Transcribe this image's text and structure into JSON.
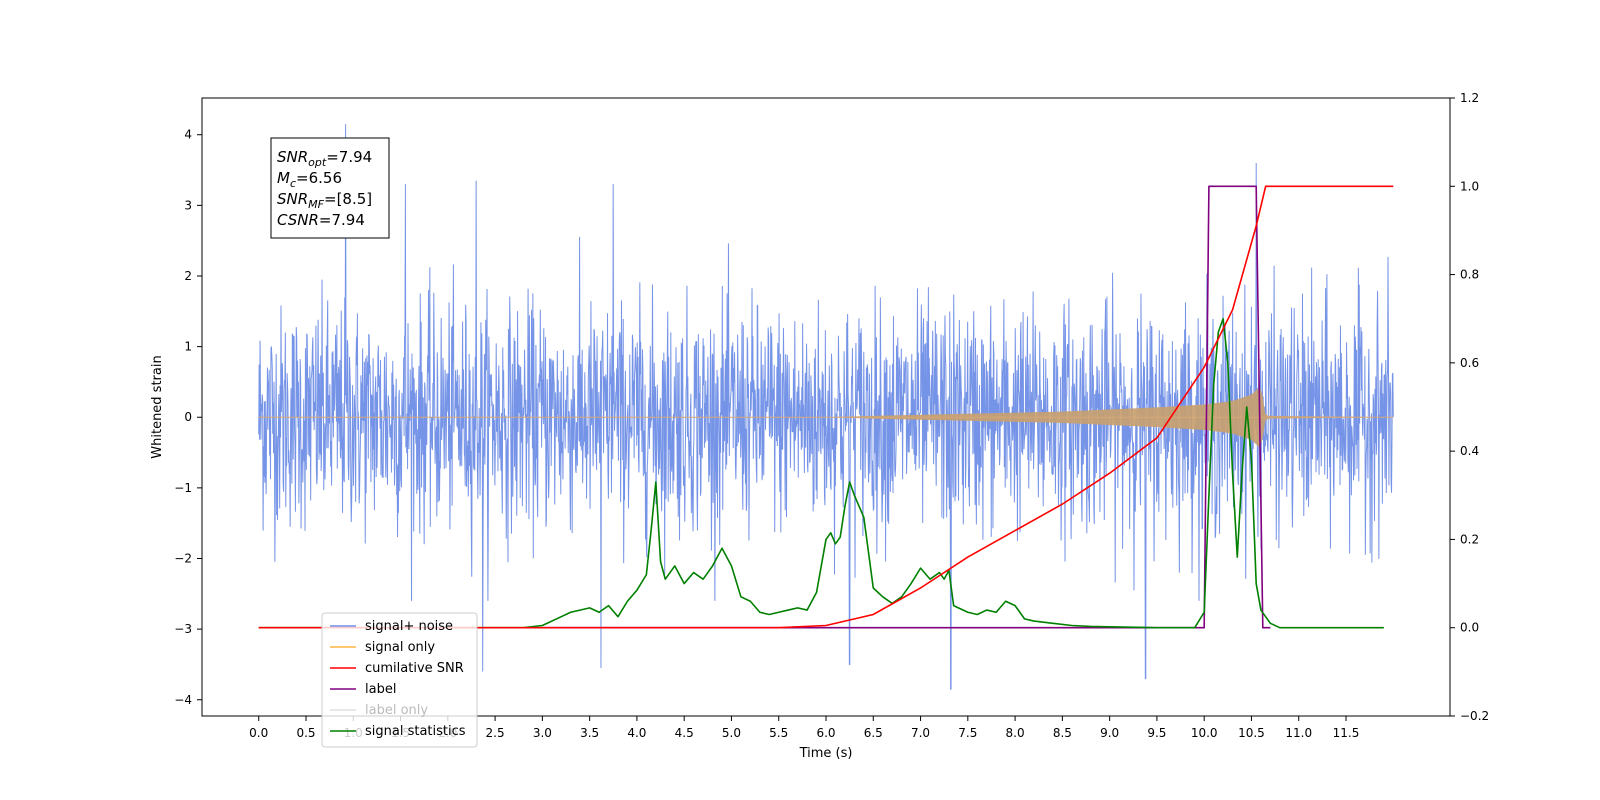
{
  "chart_data": {
    "type": "line",
    "xlabel": "Time (s)",
    "ylabel": "Whitened strain",
    "xlim": [
      -0.6,
      12.6
    ],
    "ylim": [
      -4.23,
      4.52
    ],
    "y2lim": [
      -0.2,
      1.2
    ],
    "x_ticks": [
      0.0,
      0.5,
      1.0,
      1.5,
      2.0,
      2.5,
      3.0,
      3.5,
      4.0,
      4.5,
      5.0,
      5.5,
      6.0,
      6.5,
      7.0,
      7.5,
      8.0,
      8.5,
      9.0,
      9.5,
      10.0,
      10.5,
      11.0,
      11.5
    ],
    "x_tick_labels": [
      "0.0",
      "0.5",
      "1.0",
      "1.5",
      "2.0",
      "2.5",
      "3.0",
      "3.5",
      "4.0",
      "4.5",
      "5.0",
      "5.5",
      "6.0",
      "6.5",
      "7.0",
      "7.5",
      "8.0",
      "8.5",
      "9.0",
      "9.5",
      "10.0",
      "10.5",
      "11.0",
      "11.5"
    ],
    "y_ticks": [
      -4,
      -3,
      -2,
      -1,
      0,
      1,
      2,
      3,
      4
    ],
    "y_tick_labels": [
      "−4",
      "−3",
      "−2",
      "−1",
      "0",
      "1",
      "2",
      "3",
      "4"
    ],
    "y2_ticks": [
      -0.2,
      0.0,
      0.2,
      0.4,
      0.6,
      0.8,
      1.0,
      1.2
    ],
    "y2_tick_labels": [
      "−0.2",
      "0.0",
      "0.2",
      "0.4",
      "0.6",
      "0.8",
      "1.0",
      "1.2"
    ],
    "info_box": [
      {
        "name": "SNR",
        "sub": "opt",
        "value": "=7.94"
      },
      {
        "name": "M",
        "sub": "c",
        "value": "=6.56"
      },
      {
        "name": "SNR",
        "sub": "MF",
        "value": "=[8.5]"
      },
      {
        "name": "CSNR",
        "sub": "",
        "value": "=7.94"
      }
    ],
    "legend_position": "lower-left",
    "series": [
      {
        "name": "signal+ noise",
        "axis": "left",
        "color": "#6f8ee6",
        "noise": {
          "x_start": 0.0,
          "x_end": 12.0,
          "typical_amplitude": [
            -2.0,
            2.0
          ],
          "max": 4.15,
          "min": -3.85
        }
      },
      {
        "name": "signal only",
        "axis": "left",
        "color": "#ffb347",
        "envelope": {
          "x": [
            0.0,
            6.0,
            6.5,
            7.5,
            8.5,
            9.0,
            9.5,
            10.0,
            10.3,
            10.5,
            10.6,
            10.65,
            12.0
          ],
          "amp": [
            0.0,
            0.0,
            0.02,
            0.05,
            0.08,
            0.11,
            0.14,
            0.18,
            0.23,
            0.32,
            0.45,
            0.02,
            0.0
          ]
        }
      },
      {
        "name": "cumilative SNR",
        "axis": "right",
        "color": "#ff0000",
        "x": [
          0.0,
          5.5,
          6.0,
          6.5,
          7.0,
          7.5,
          8.0,
          8.5,
          9.0,
          9.5,
          10.0,
          10.3,
          10.55,
          10.65,
          12.0
        ],
        "values": [
          0.0,
          0.0,
          0.005,
          0.03,
          0.09,
          0.16,
          0.22,
          0.28,
          0.35,
          0.43,
          0.59,
          0.72,
          0.91,
          1.0,
          1.0
        ]
      },
      {
        "name": "label",
        "axis": "right",
        "color": "#800080",
        "x": [
          3.0,
          10.0,
          10.05,
          10.55,
          10.62,
          10.7
        ],
        "values": [
          0.0,
          0.0,
          1.0,
          1.0,
          0.0,
          0.0
        ]
      },
      {
        "name": "label only",
        "axis": "right",
        "color": "#e0e0e0",
        "x": [],
        "values": []
      },
      {
        "name": "signal statistics",
        "axis": "right",
        "color": "#008000",
        "x": [
          0.0,
          2.8,
          3.0,
          3.2,
          3.3,
          3.5,
          3.6,
          3.7,
          3.8,
          3.9,
          4.0,
          4.1,
          4.15,
          4.2,
          4.25,
          4.3,
          4.4,
          4.5,
          4.6,
          4.7,
          4.8,
          4.9,
          5.0,
          5.1,
          5.2,
          5.3,
          5.4,
          5.5,
          5.6,
          5.7,
          5.8,
          5.9,
          6.0,
          6.05,
          6.1,
          6.15,
          6.2,
          6.25,
          6.3,
          6.4,
          6.5,
          6.6,
          6.7,
          6.8,
          6.9,
          7.0,
          7.1,
          7.2,
          7.25,
          7.3,
          7.35,
          7.4,
          7.5,
          7.6,
          7.7,
          7.8,
          7.9,
          8.0,
          8.1,
          8.2,
          8.4,
          8.6,
          8.8,
          9.0,
          9.5,
          9.9,
          10.0,
          10.05,
          10.1,
          10.15,
          10.2,
          10.25,
          10.3,
          10.35,
          10.4,
          10.45,
          10.5,
          10.55,
          10.6,
          10.7,
          10.8,
          11.0,
          11.9
        ],
        "values": [
          0.0,
          0.0,
          0.005,
          0.025,
          0.035,
          0.045,
          0.035,
          0.05,
          0.025,
          0.06,
          0.085,
          0.12,
          0.22,
          0.33,
          0.15,
          0.11,
          0.14,
          0.1,
          0.125,
          0.11,
          0.14,
          0.18,
          0.14,
          0.07,
          0.06,
          0.035,
          0.03,
          0.035,
          0.04,
          0.045,
          0.04,
          0.08,
          0.2,
          0.215,
          0.19,
          0.205,
          0.275,
          0.33,
          0.3,
          0.25,
          0.09,
          0.07,
          0.055,
          0.07,
          0.1,
          0.135,
          0.11,
          0.125,
          0.11,
          0.13,
          0.05,
          0.045,
          0.035,
          0.03,
          0.04,
          0.035,
          0.06,
          0.05,
          0.02,
          0.015,
          0.01,
          0.005,
          0.003,
          0.002,
          0.0,
          0.0,
          0.035,
          0.3,
          0.55,
          0.67,
          0.7,
          0.6,
          0.35,
          0.16,
          0.35,
          0.5,
          0.38,
          0.1,
          0.04,
          0.01,
          0.0,
          0.0,
          0.0
        ]
      }
    ]
  }
}
